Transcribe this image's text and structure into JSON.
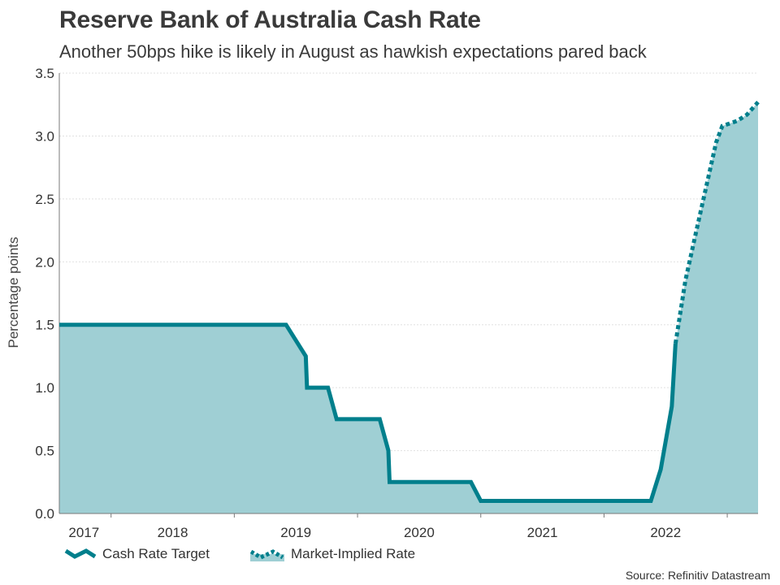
{
  "colors": {
    "line": "#007f8c",
    "area": "#9fcfd4",
    "grid": "#e0e0e0",
    "axis": "#7a7a7a",
    "text": "#333333"
  },
  "source": "Source: Refinitiv Datastream",
  "chart_data": {
    "type": "area",
    "title": "Reserve Bank of Australia Cash Rate",
    "subtitle": "Another 50bps hike is likely in August as hawkish expectations pared back",
    "xlabel": "",
    "ylabel": "Percentage points",
    "xlim": [
      2017.0,
      2022.67
    ],
    "ylim": [
      0,
      3.5
    ],
    "yticks": [
      0.0,
      0.5,
      1.0,
      1.5,
      2.0,
      2.5,
      3.0,
      3.5
    ],
    "ytick_labels": [
      "0.0",
      "0.5",
      "1.0",
      "1.5",
      "2.0",
      "2.5",
      "3.0",
      "3.5"
    ],
    "xticks": [
      2017.42,
      2018.42,
      2019.42,
      2020.42,
      2021.42,
      2022.42
    ],
    "xtick_labels": [
      {
        "x": 2017.2,
        "label": "2017"
      },
      {
        "x": 2017.92,
        "label": "2018"
      },
      {
        "x": 2018.92,
        "label": "2019"
      },
      {
        "x": 2019.92,
        "label": "2020"
      },
      {
        "x": 2020.92,
        "label": "2021"
      },
      {
        "x": 2021.92,
        "label": "2022"
      }
    ],
    "grid": true,
    "series": [
      {
        "name": "Cash Rate Target",
        "style": "solid",
        "points": [
          [
            2017.0,
            1.5
          ],
          [
            2018.84,
            1.5
          ],
          [
            2019.0,
            1.25
          ],
          [
            2019.01,
            1.0
          ],
          [
            2019.18,
            1.0
          ],
          [
            2019.25,
            0.75
          ],
          [
            2019.6,
            0.75
          ],
          [
            2019.67,
            0.5
          ],
          [
            2019.68,
            0.25
          ],
          [
            2020.34,
            0.25
          ],
          [
            2020.42,
            0.1
          ],
          [
            2021.8,
            0.1
          ],
          [
            2021.88,
            0.35
          ],
          [
            2021.97,
            0.85
          ],
          [
            2022.0,
            1.35
          ]
        ]
      },
      {
        "name": "Market-Implied Rate",
        "style": "dotted",
        "points": [
          [
            2022.0,
            1.35
          ],
          [
            2022.08,
            1.85
          ],
          [
            2022.17,
            2.25
          ],
          [
            2022.25,
            2.6
          ],
          [
            2022.33,
            2.95
          ],
          [
            2022.38,
            3.08
          ],
          [
            2022.5,
            3.12
          ],
          [
            2022.58,
            3.17
          ],
          [
            2022.67,
            3.27
          ]
        ]
      }
    ]
  }
}
